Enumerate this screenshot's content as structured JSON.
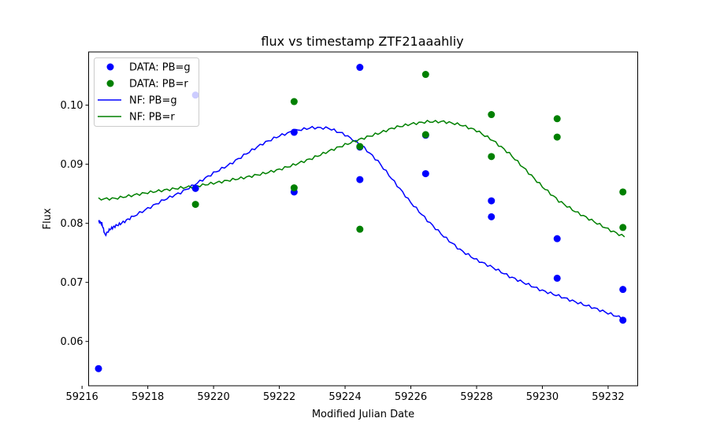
{
  "chart_data": {
    "type": "scatter",
    "title": "flux vs timestamp ZTF21aaahliy",
    "xlabel": "Modified Julian Date",
    "ylabel": "Flux",
    "xlim": [
      59216.2,
      59232.9
    ],
    "ylim": [
      0.0525,
      0.109
    ],
    "xticks": [
      59216,
      59218,
      59220,
      59222,
      59224,
      59226,
      59228,
      59230,
      59232
    ],
    "yticks": [
      0.06,
      0.07,
      0.08,
      0.09,
      0.1
    ],
    "ytick_labels": [
      "0.06",
      "0.07",
      "0.08",
      "0.09",
      "0.10"
    ],
    "grid": false,
    "legend_position": "top-left",
    "colors": {
      "g": "#0000ff",
      "r": "#008000"
    },
    "scatter_series": [
      {
        "name": "DATA: PB=g",
        "color": "#0000ff",
        "points": [
          [
            59216.5,
            0.0554
          ],
          [
            59219.45,
            0.1017
          ],
          [
            59219.45,
            0.0859
          ],
          [
            59222.45,
            0.0954
          ],
          [
            59222.45,
            0.0853
          ],
          [
            59224.45,
            0.1064
          ],
          [
            59224.45,
            0.0874
          ],
          [
            59224.45,
            0.0929
          ],
          [
            59226.45,
            0.0949
          ],
          [
            59226.45,
            0.0884
          ],
          [
            59228.45,
            0.0838
          ],
          [
            59228.45,
            0.0811
          ],
          [
            59230.45,
            0.0774
          ],
          [
            59230.45,
            0.0707
          ],
          [
            59232.45,
            0.0688
          ],
          [
            59232.45,
            0.0636
          ]
        ]
      },
      {
        "name": "DATA: PB=r",
        "color": "#008000",
        "points": [
          [
            59219.45,
            0.0832
          ],
          [
            59222.45,
            0.1006
          ],
          [
            59222.45,
            0.086
          ],
          [
            59224.45,
            0.093
          ],
          [
            59224.45,
            0.079
          ],
          [
            59226.45,
            0.1052
          ],
          [
            59226.45,
            0.095
          ],
          [
            59228.45,
            0.0984
          ],
          [
            59228.45,
            0.0913
          ],
          [
            59230.45,
            0.0977
          ],
          [
            59230.45,
            0.0946
          ],
          [
            59232.45,
            0.0853
          ],
          [
            59232.45,
            0.0793
          ]
        ]
      }
    ],
    "line_series": [
      {
        "name": "NF: PB=g",
        "color": "#0000ff",
        "points": [
          [
            59216.5,
            0.0803
          ],
          [
            59216.6,
            0.08
          ],
          [
            59216.7,
            0.078
          ],
          [
            59216.85,
            0.079
          ],
          [
            59217.0,
            0.0795
          ],
          [
            59217.2,
            0.08
          ],
          [
            59217.5,
            0.081
          ],
          [
            59218.0,
            0.0825
          ],
          [
            59218.5,
            0.084
          ],
          [
            59219.0,
            0.0852
          ],
          [
            59219.5,
            0.0868
          ],
          [
            59220.0,
            0.0885
          ],
          [
            59220.5,
            0.09
          ],
          [
            59221.0,
            0.0918
          ],
          [
            59221.5,
            0.0935
          ],
          [
            59222.0,
            0.0948
          ],
          [
            59222.5,
            0.0957
          ],
          [
            59223.0,
            0.0962
          ],
          [
            59223.5,
            0.0961
          ],
          [
            59224.0,
            0.095
          ],
          [
            59224.5,
            0.0932
          ],
          [
            59225.0,
            0.0905
          ],
          [
            59225.5,
            0.087
          ],
          [
            59226.0,
            0.0835
          ],
          [
            59226.5,
            0.0805
          ],
          [
            59227.0,
            0.0778
          ],
          [
            59227.5,
            0.0755
          ],
          [
            59228.0,
            0.0738
          ],
          [
            59228.5,
            0.0725
          ],
          [
            59229.0,
            0.071
          ],
          [
            59229.5,
            0.0698
          ],
          [
            59230.0,
            0.0686
          ],
          [
            59230.5,
            0.0677
          ],
          [
            59231.0,
            0.0667
          ],
          [
            59231.5,
            0.0658
          ],
          [
            59232.0,
            0.0648
          ],
          [
            59232.5,
            0.0638
          ]
        ]
      },
      {
        "name": "NF: PB=r",
        "color": "#008000",
        "points": [
          [
            59216.5,
            0.0841
          ],
          [
            59217.0,
            0.0842
          ],
          [
            59217.5,
            0.0847
          ],
          [
            59218.0,
            0.0852
          ],
          [
            59218.5,
            0.0856
          ],
          [
            59219.0,
            0.086
          ],
          [
            59219.5,
            0.0863
          ],
          [
            59220.0,
            0.0868
          ],
          [
            59220.5,
            0.0873
          ],
          [
            59221.0,
            0.0878
          ],
          [
            59221.5,
            0.0884
          ],
          [
            59222.0,
            0.0891
          ],
          [
            59222.5,
            0.09
          ],
          [
            59223.0,
            0.091
          ],
          [
            59223.5,
            0.0922
          ],
          [
            59224.0,
            0.0933
          ],
          [
            59224.5,
            0.0943
          ],
          [
            59225.0,
            0.0952
          ],
          [
            59225.5,
            0.0962
          ],
          [
            59226.0,
            0.0968
          ],
          [
            59226.5,
            0.0972
          ],
          [
            59227.0,
            0.0972
          ],
          [
            59227.5,
            0.0967
          ],
          [
            59228.0,
            0.0957
          ],
          [
            59228.5,
            0.094
          ],
          [
            59229.0,
            0.0918
          ],
          [
            59229.5,
            0.089
          ],
          [
            59230.0,
            0.0862
          ],
          [
            59230.5,
            0.0838
          ],
          [
            59231.0,
            0.082
          ],
          [
            59231.5,
            0.0805
          ],
          [
            59232.0,
            0.079
          ],
          [
            59232.5,
            0.0777
          ]
        ]
      }
    ]
  }
}
